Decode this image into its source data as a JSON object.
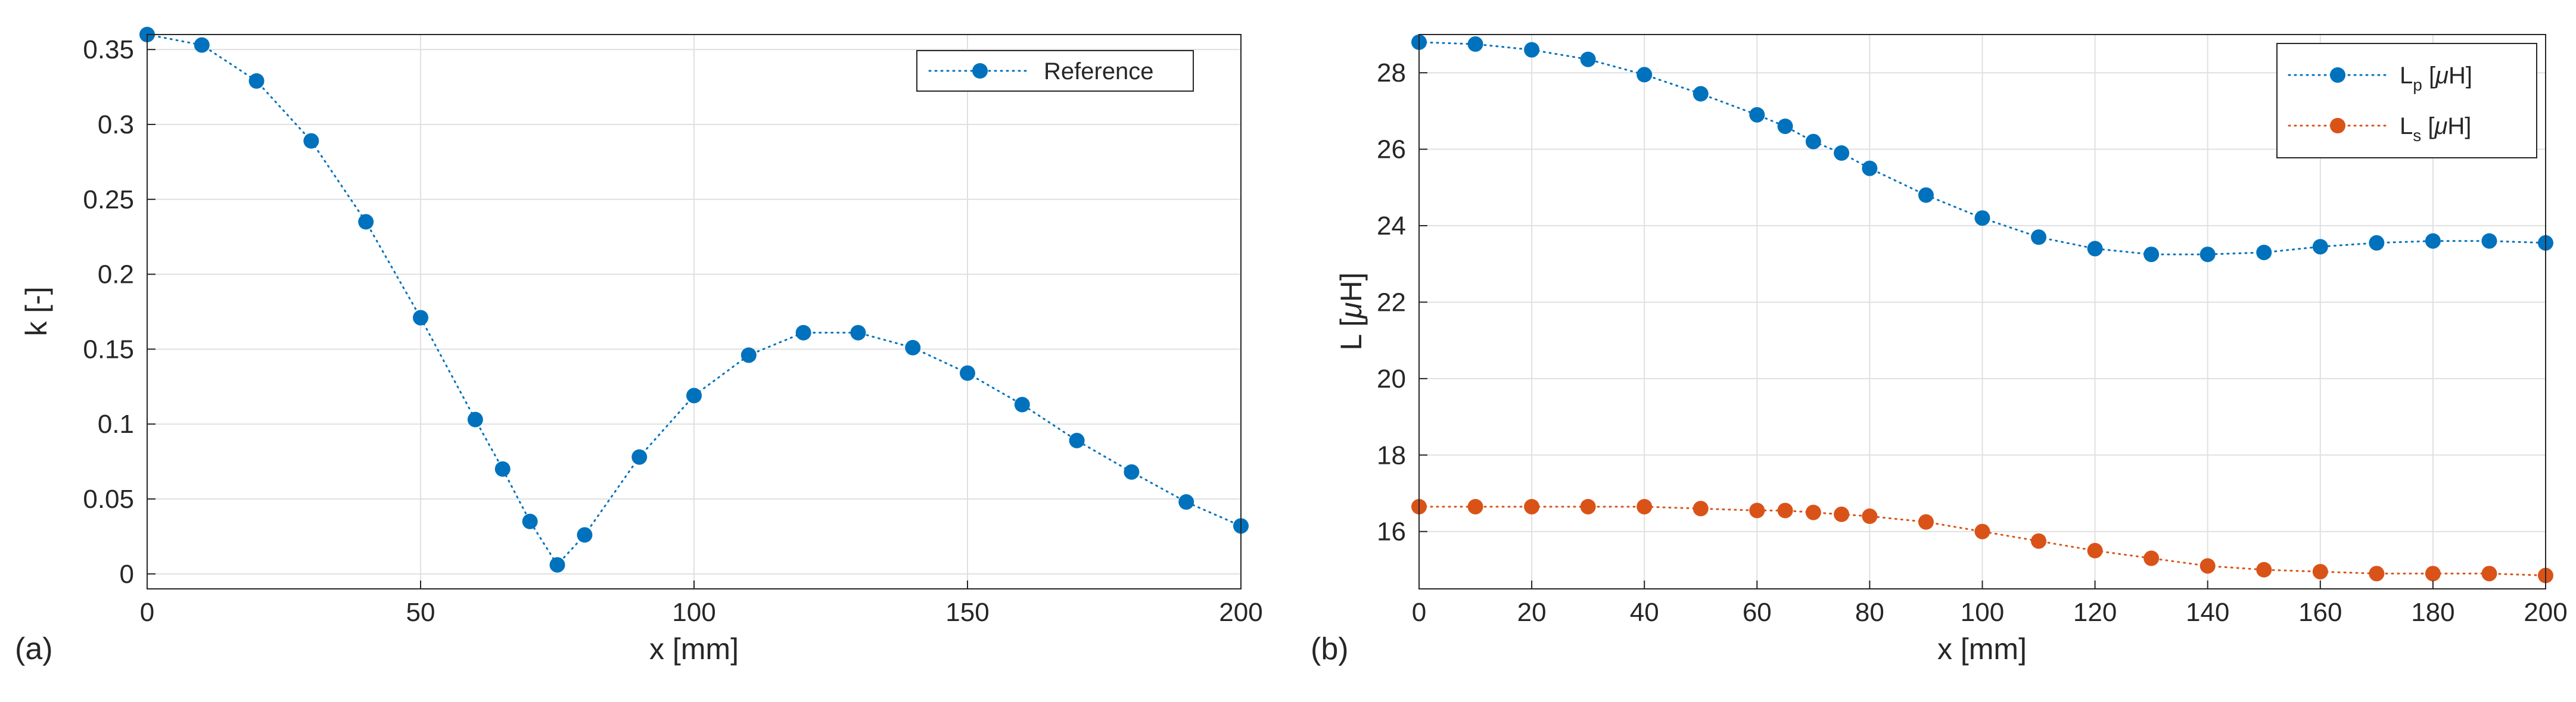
{
  "chart_data": [
    {
      "panel": "(a)",
      "type": "line",
      "xlabel": "x [mm]",
      "ylabel": "k [-]",
      "xlim": [
        0,
        200
      ],
      "ylim": [
        -0.01,
        0.36
      ],
      "xticks": [
        "0",
        "50",
        "100",
        "150",
        "200"
      ],
      "yticks": [
        "0",
        "0.05",
        "0.1",
        "0.15",
        "0.2",
        "0.25",
        "0.3",
        "0.35"
      ],
      "grid": true,
      "legend_position": "top-right",
      "series": [
        {
          "name": "Reference",
          "color": "#0072BD",
          "x": [
            0,
            10,
            20,
            30,
            40,
            50,
            60,
            65,
            70,
            75,
            80,
            90,
            100,
            110,
            120,
            130,
            140,
            150,
            160,
            170,
            180,
            190,
            200
          ],
          "y": [
            0.36,
            0.353,
            0.329,
            0.289,
            0.235,
            0.171,
            0.103,
            0.07,
            0.035,
            0.006,
            0.026,
            0.078,
            0.119,
            0.146,
            0.161,
            0.161,
            0.151,
            0.134,
            0.113,
            0.089,
            0.068,
            0.048,
            0.032
          ]
        }
      ]
    },
    {
      "panel": "(b)",
      "type": "line",
      "xlabel": "x [mm]",
      "ylabel_main": "L [",
      "ylabel_mu": "μ",
      "ylabel_end": "H]",
      "xlim": [
        0,
        200
      ],
      "ylim": [
        14.5,
        29
      ],
      "xticks": [
        "0",
        "20",
        "40",
        "60",
        "80",
        "100",
        "120",
        "140",
        "160",
        "180",
        "200"
      ],
      "yticks": [
        "16",
        "18",
        "20",
        "22",
        "24",
        "26",
        "28"
      ],
      "grid": true,
      "legend_position": "top-right",
      "series": [
        {
          "name": "Lp [μH]",
          "legend_main": "L",
          "legend_sub": "p",
          "legend_unit_open": " [",
          "legend_mu": "μ",
          "legend_unit_close": "H]",
          "color": "#0072BD",
          "x": [
            0,
            10,
            20,
            30,
            40,
            50,
            60,
            65,
            70,
            75,
            80,
            90,
            100,
            110,
            120,
            130,
            140,
            150,
            160,
            170,
            180,
            190,
            200
          ],
          "y": [
            28.8,
            28.75,
            28.6,
            28.35,
            27.95,
            27.45,
            26.9,
            26.6,
            26.2,
            25.9,
            25.5,
            24.8,
            24.2,
            23.7,
            23.4,
            23.25,
            23.25,
            23.3,
            23.45,
            23.55,
            23.6,
            23.6,
            23.55
          ]
        },
        {
          "name": "Ls [μH]",
          "legend_main": "L",
          "legend_sub": "s",
          "legend_unit_open": " [",
          "legend_mu": "μ",
          "legend_unit_close": "H]",
          "color": "#D95319",
          "x": [
            0,
            10,
            20,
            30,
            40,
            50,
            60,
            65,
            70,
            75,
            80,
            90,
            100,
            110,
            120,
            130,
            140,
            150,
            160,
            170,
            180,
            190,
            200
          ],
          "y": [
            16.65,
            16.65,
            16.65,
            16.65,
            16.65,
            16.6,
            16.55,
            16.55,
            16.5,
            16.45,
            16.4,
            16.25,
            16.0,
            15.75,
            15.5,
            15.3,
            15.1,
            15.0,
            14.95,
            14.9,
            14.9,
            14.9,
            14.85
          ]
        }
      ]
    }
  ]
}
